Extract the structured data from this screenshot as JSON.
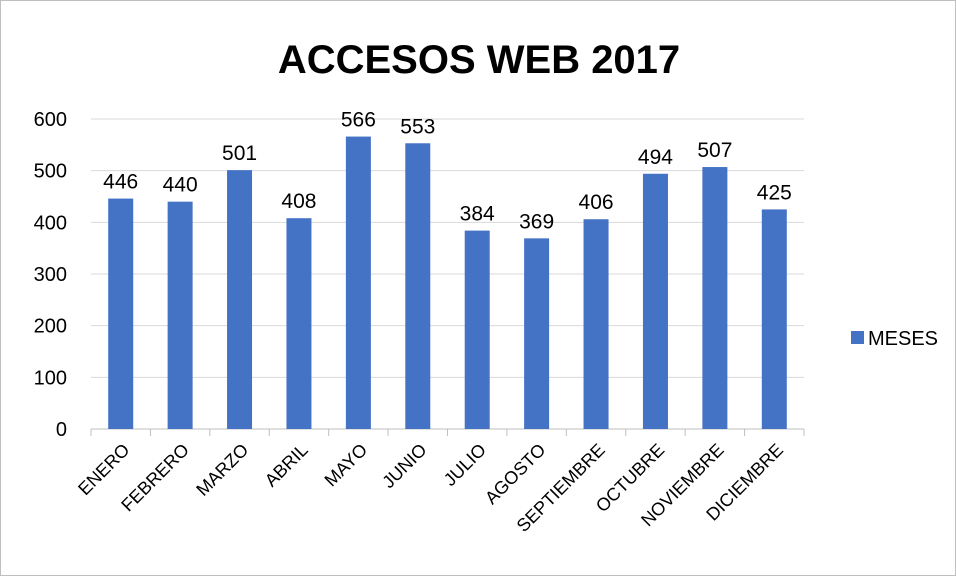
{
  "chart_data": {
    "type": "bar",
    "title": "ACCESOS WEB 2017",
    "xlabel": "",
    "ylabel": "",
    "categories": [
      "ENERO",
      "FEBRERO",
      "MARZO",
      "ABRIL",
      "MAYO",
      "JUNIO",
      "JULIO",
      "AGOSTO",
      "SEPTIEMBRE",
      "OCTUBRE",
      "NOVIEMBRE",
      "DICIEMBRE"
    ],
    "series": [
      {
        "name": "MESES",
        "values": [
          446,
          440,
          501,
          408,
          566,
          553,
          384,
          369,
          406,
          494,
          507,
          425
        ],
        "color": "#4472C4"
      }
    ],
    "ylim": [
      0,
      600
    ],
    "yticks": [
      0,
      100,
      200,
      300,
      400,
      500,
      600
    ],
    "grid": true,
    "data_labels": true,
    "legend_position": "right"
  }
}
